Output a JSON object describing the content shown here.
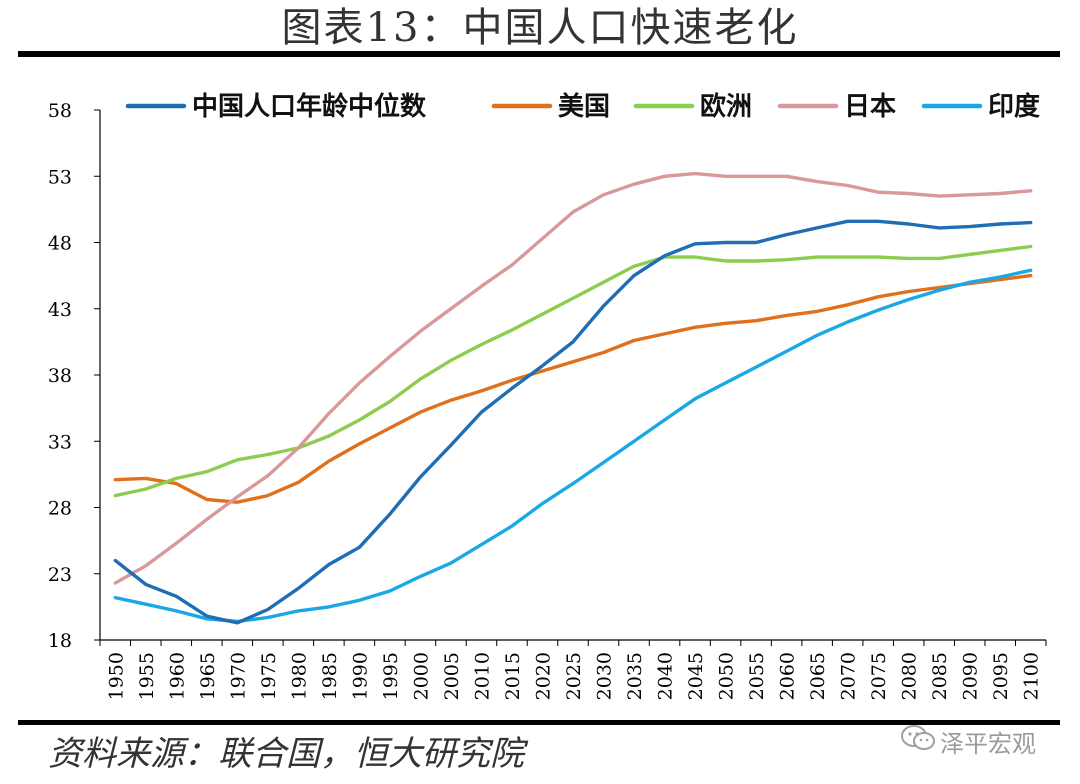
{
  "title": "图表13：中国人口快速老化",
  "source": "资料来源：联合国，恒大研究院",
  "watermark": "泽平宏观",
  "chart_data": {
    "type": "line",
    "title": "图表13：中国人口快速老化",
    "xlabel": "",
    "ylabel": "",
    "ylim": [
      18,
      58
    ],
    "yticks": [
      18,
      23,
      28,
      33,
      38,
      43,
      48,
      53,
      58
    ],
    "grid": false,
    "legend_position": "top",
    "x": [
      1950,
      1955,
      1960,
      1965,
      1970,
      1975,
      1980,
      1985,
      1990,
      1995,
      2000,
      2005,
      2010,
      2015,
      2020,
      2025,
      2030,
      2035,
      2040,
      2045,
      2050,
      2055,
      2060,
      2065,
      2070,
      2075,
      2080,
      2085,
      2090,
      2095,
      2100
    ],
    "series": [
      {
        "name": "中国人口年龄中位数",
        "color": "#1f6eb5",
        "values": [
          24.0,
          22.2,
          21.3,
          19.8,
          19.3,
          20.3,
          21.9,
          23.7,
          25.0,
          27.5,
          30.3,
          32.7,
          35.2,
          37.0,
          38.7,
          40.5,
          43.2,
          45.5,
          47.0,
          47.9,
          48.0,
          48.0,
          48.6,
          49.1,
          49.6,
          49.6,
          49.4,
          49.1,
          49.2,
          49.4,
          49.5
        ]
      },
      {
        "name": "美国",
        "color": "#e0701b",
        "values": [
          30.1,
          30.2,
          29.8,
          28.6,
          28.4,
          28.9,
          29.9,
          31.5,
          32.8,
          34.0,
          35.2,
          36.1,
          36.8,
          37.6,
          38.3,
          39.0,
          39.7,
          40.6,
          41.1,
          41.6,
          41.9,
          42.1,
          42.5,
          42.8,
          43.3,
          43.9,
          44.3,
          44.6,
          44.9,
          45.2,
          45.5
        ]
      },
      {
        "name": "欧洲",
        "color": "#8ccc4e",
        "values": [
          28.9,
          29.4,
          30.2,
          30.7,
          31.6,
          32.0,
          32.5,
          33.4,
          34.6,
          36.0,
          37.7,
          39.1,
          40.3,
          41.4,
          42.6,
          43.8,
          45.0,
          46.2,
          46.9,
          46.9,
          46.6,
          46.6,
          46.7,
          46.9,
          46.9,
          46.9,
          46.8,
          46.8,
          47.1,
          47.4,
          47.7
        ]
      },
      {
        "name": "日本",
        "color": "#d9989a",
        "values": [
          22.3,
          23.6,
          25.3,
          27.1,
          28.8,
          30.4,
          32.5,
          35.1,
          37.4,
          39.4,
          41.3,
          43.0,
          44.7,
          46.3,
          48.3,
          50.3,
          51.6,
          52.4,
          53.0,
          53.2,
          53.0,
          53.0,
          53.0,
          52.6,
          52.3,
          51.8,
          51.7,
          51.5,
          51.6,
          51.7,
          51.9
        ]
      },
      {
        "name": "印度",
        "color": "#1aa7e6",
        "values": [
          21.2,
          20.7,
          20.2,
          19.6,
          19.4,
          19.7,
          20.2,
          20.5,
          21.0,
          21.7,
          22.8,
          23.8,
          25.2,
          26.6,
          28.3,
          29.8,
          31.4,
          33.0,
          34.6,
          36.2,
          37.4,
          38.6,
          39.8,
          41.0,
          42.0,
          42.9,
          43.7,
          44.4,
          45.0,
          45.4,
          45.9
        ]
      }
    ]
  }
}
